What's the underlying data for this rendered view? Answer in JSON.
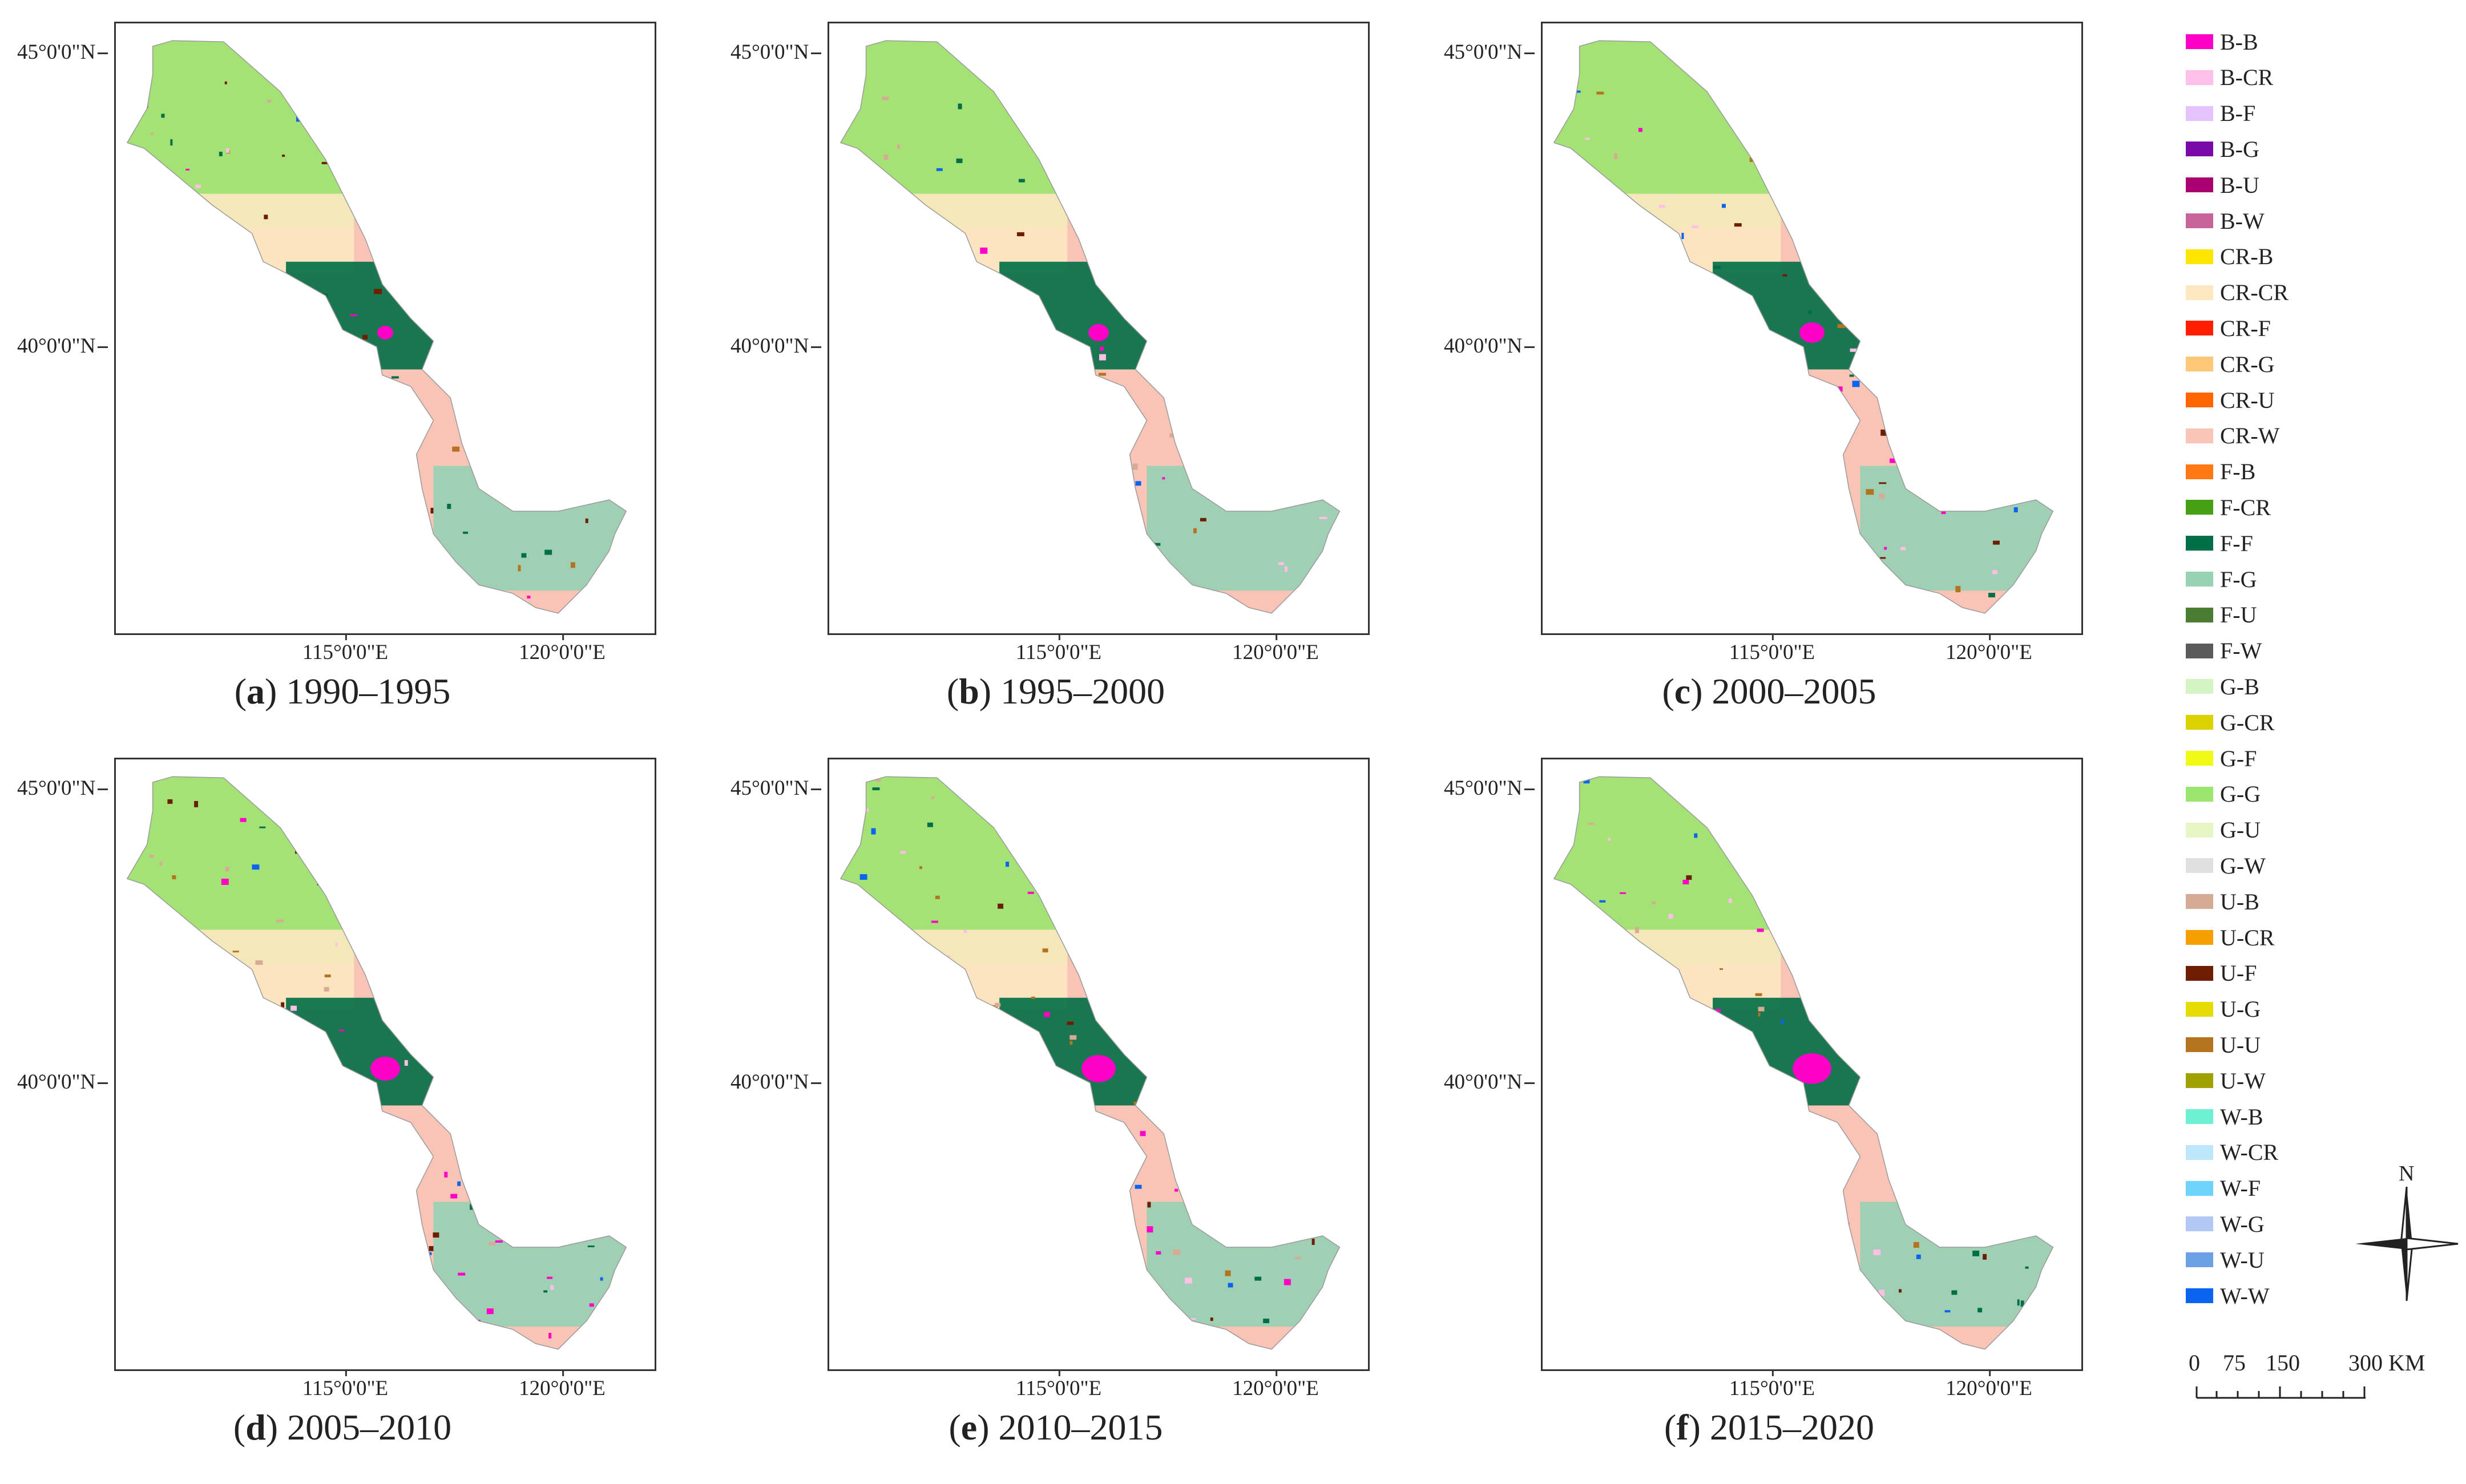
{
  "panels": [
    {
      "letter": "a",
      "period": "1990–1995",
      "variant": 0
    },
    {
      "letter": "b",
      "period": "1995–2000",
      "variant": 1
    },
    {
      "letter": "c",
      "period": "2000–2005",
      "variant": 2
    },
    {
      "letter": "d",
      "period": "2005–2010",
      "variant": 3
    },
    {
      "letter": "e",
      "period": "2010–2015",
      "variant": 4
    },
    {
      "letter": "f",
      "period": "2015–2020",
      "variant": 5
    }
  ],
  "axes": {
    "lat_labels": [
      "45°0'0\"N",
      "40°0'0\"N"
    ],
    "lon_labels": [
      "115°0'0\"E",
      "120°0'0\"E"
    ]
  },
  "legend": [
    {
      "label": "B-B",
      "color": "#ff00c8"
    },
    {
      "label": "B-CR",
      "color": "#ffbfe6"
    },
    {
      "label": "B-F",
      "color": "#e6c3ff"
    },
    {
      "label": "B-G",
      "color": "#7a0aa8"
    },
    {
      "label": "B-U",
      "color": "#a8006e"
    },
    {
      "label": "B-W",
      "color": "#c8649a"
    },
    {
      "label": "CR-B",
      "color": "#ffe600"
    },
    {
      "label": "CR-CR",
      "color": "#fde8c2"
    },
    {
      "label": "CR-F",
      "color": "#ff1e00"
    },
    {
      "label": "CR-G",
      "color": "#ffc878"
    },
    {
      "label": "CR-U",
      "color": "#ff6400"
    },
    {
      "label": "CR-W",
      "color": "#f9c3b6"
    },
    {
      "label": "F-B",
      "color": "#ff7814"
    },
    {
      "label": "F-CR",
      "color": "#46a014"
    },
    {
      "label": "F-F",
      "color": "#006e46"
    },
    {
      "label": "F-G",
      "color": "#96d2b4"
    },
    {
      "label": "F-U",
      "color": "#4a7d32"
    },
    {
      "label": "F-W",
      "color": "#5a5a5a"
    },
    {
      "label": "G-B",
      "color": "#d2f5c3"
    },
    {
      "label": "G-CR",
      "color": "#dcd200"
    },
    {
      "label": "G-F",
      "color": "#f0fa14"
    },
    {
      "label": "G-G",
      "color": "#9be66e"
    },
    {
      "label": "G-U",
      "color": "#e6f5c3"
    },
    {
      "label": "G-W",
      "color": "#e0e0e0"
    },
    {
      "label": "U-B",
      "color": "#d7aa96"
    },
    {
      "label": "U-CR",
      "color": "#f5a000"
    },
    {
      "label": "U-F",
      "color": "#6e1e00"
    },
    {
      "label": "U-G",
      "color": "#e6dc00"
    },
    {
      "label": "U-U",
      "color": "#b4731e"
    },
    {
      "label": "U-W",
      "color": "#a0a000"
    },
    {
      "label": "W-B",
      "color": "#6ef0d2"
    },
    {
      "label": "W-CR",
      "color": "#bee6fa"
    },
    {
      "label": "W-F",
      "color": "#6ed2fa"
    },
    {
      "label": "W-G",
      "color": "#b4c8f5"
    },
    {
      "label": "W-U",
      "color": "#6ea0e6"
    },
    {
      "label": "W-W",
      "color": "#0a64f0"
    }
  ],
  "north_label": "N",
  "scale": {
    "ticks": [
      "0",
      "75",
      "150",
      "300 KM"
    ]
  }
}
